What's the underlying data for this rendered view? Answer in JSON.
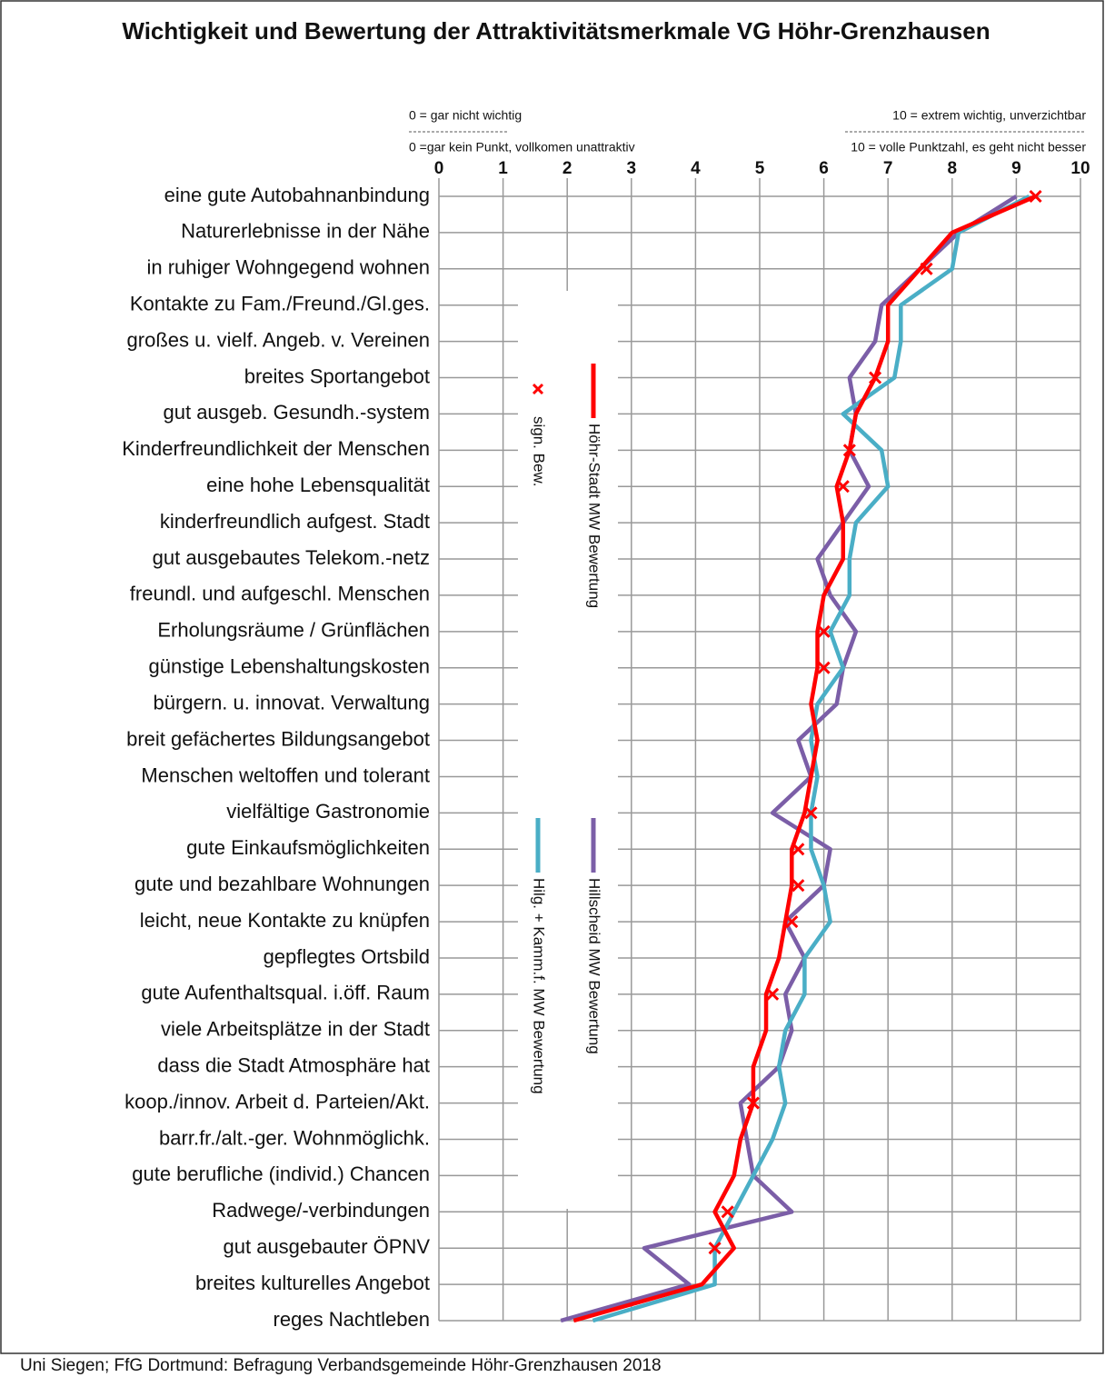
{
  "chart_data": {
    "type": "line",
    "orientation": "horizontal",
    "title": "Wichtigkeit und Bewertung der Attraktivitätsmerkmale VG Höhr-Grenzhausen",
    "annotations": {
      "top_left": "0 = gar nicht wichtig",
      "top_right": "10 = extrem wichtig, unverzichtbar",
      "bottom_left": "0 =gar kein Punkt, vollkomen unattraktiv",
      "bottom_right": "10 = volle Punktzahl, es geht nicht besser"
    },
    "source": "Uni Siegen; FfG Dortmund: Befragung Verbandsgemeinde Höhr-Grenzhausen 2018",
    "categories": [
      "eine gute Autobahnanbindung",
      "Naturerlebnisse in der Nähe",
      "in ruhiger Wohngegend wohnen",
      "Kontakte zu Fam./Freund./Gl.ges.",
      "großes u. vielf. Angeb. v. Vereinen",
      "breites Sportangebot",
      "gut ausgeb. Gesundh.-system",
      "Kinderfreundlichkeit der Menschen",
      "eine hohe Lebensqualität",
      "kinderfreundlich aufgest. Stadt",
      "gut ausgebautes Telekom.-netz",
      "freundl. und aufgeschl. Menschen",
      "Erholungsräume / Grünflächen",
      "günstige Lebenshaltungskosten",
      "bürgern. u. innovat. Verwaltung",
      "breit gefächertes Bildungsangebot",
      "Menschen weltoffen und tolerant",
      "vielfältige Gastronomie",
      "gute Einkaufsmöglichkeiten",
      "gute und bezahlbare Wohnungen",
      "leicht, neue Kontakte zu knüpfen",
      "gepflegtes Ortsbild",
      "gute Aufenthaltsqual. i.öff. Raum",
      "viele Arbeitsplätze in der Stadt",
      "dass die Stadt Atmosphäre hat",
      "koop./innov. Arbeit d. Parteien/Akt.",
      "barr.fr./alt.-ger. Wohnmöglichk.",
      "gute berufliche (individ.) Chancen",
      "Radwege/-verbindungen",
      "gut ausgebauter ÖPNV",
      "breites kulturelles Angebot",
      "reges Nachtleben"
    ],
    "series": [
      {
        "name": "Hillscheid MW Bewertung",
        "color": "#7b5ea7",
        "style": "line",
        "values": [
          9.0,
          8.1,
          7.5,
          6.9,
          6.8,
          6.4,
          6.5,
          6.4,
          6.7,
          6.3,
          5.9,
          6.1,
          6.5,
          6.3,
          6.2,
          5.6,
          5.8,
          5.2,
          6.1,
          6.0,
          5.4,
          5.7,
          5.4,
          5.5,
          5.3,
          4.7,
          4.8,
          4.9,
          5.5,
          3.2,
          3.9,
          1.9
        ]
      },
      {
        "name": "Hilg. + Kamm.f. MW Bewertung",
        "color": "#4aaec6",
        "style": "line",
        "values": [
          9.2,
          8.1,
          8.0,
          7.2,
          7.2,
          7.1,
          6.3,
          6.9,
          7.0,
          6.5,
          6.4,
          6.4,
          6.1,
          6.3,
          5.9,
          5.8,
          5.9,
          5.8,
          5.8,
          6.0,
          6.1,
          5.7,
          5.7,
          5.4,
          5.3,
          5.4,
          5.2,
          4.9,
          4.6,
          4.3,
          4.3,
          2.4
        ]
      },
      {
        "name": "Höhr-Stadt MW Bewertung",
        "color": "#ff0000",
        "style": "line",
        "values": [
          9.3,
          8.0,
          7.5,
          7.0,
          7.0,
          6.8,
          6.5,
          6.4,
          6.2,
          6.3,
          6.3,
          6.0,
          5.9,
          5.9,
          5.8,
          5.9,
          5.8,
          5.7,
          5.5,
          5.5,
          5.4,
          5.3,
          5.1,
          5.1,
          4.9,
          4.9,
          4.7,
          4.6,
          4.3,
          4.6,
          4.1,
          2.1
        ]
      },
      {
        "name": "sign. Bew.",
        "color": "#ff0000",
        "style": "x",
        "values": [
          9.3,
          null,
          7.6,
          null,
          null,
          6.8,
          null,
          6.4,
          6.3,
          null,
          null,
          null,
          6.0,
          6.0,
          null,
          null,
          null,
          5.8,
          5.6,
          5.6,
          5.5,
          null,
          5.2,
          null,
          null,
          4.9,
          null,
          null,
          4.5,
          4.3,
          null,
          null
        ]
      }
    ],
    "xlim": [
      0,
      10
    ],
    "xticks": [
      0,
      1,
      2,
      3,
      4,
      5,
      6,
      7,
      8,
      9,
      10
    ],
    "grid": true
  }
}
